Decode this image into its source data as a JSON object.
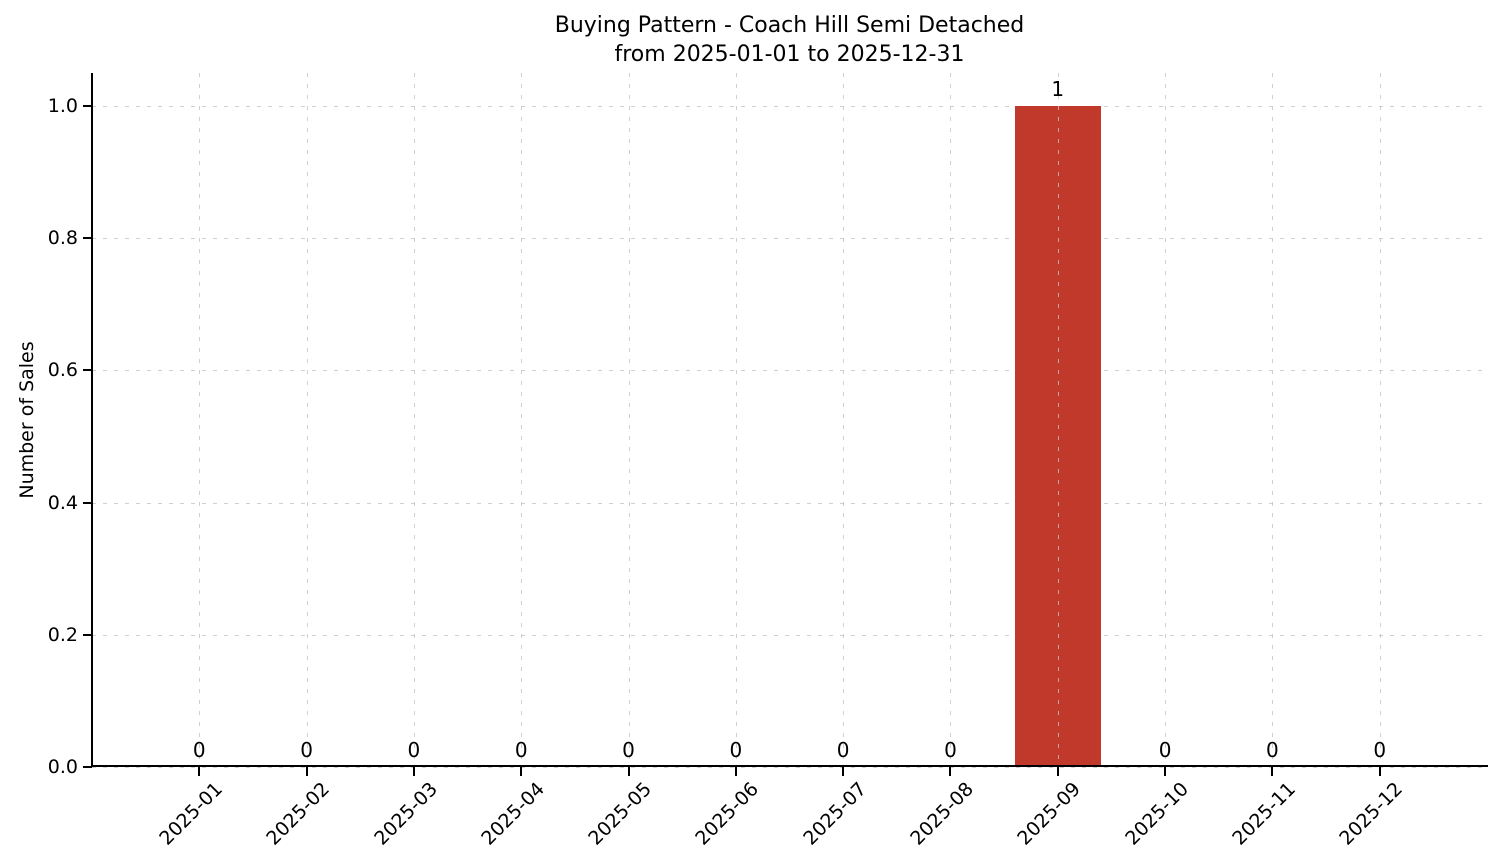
{
  "chart_data": {
    "type": "bar",
    "title": "Buying Pattern - Coach Hill Semi Detached",
    "subtitle": "from 2025-01-01 to 2025-12-31",
    "xlabel": "",
    "ylabel": "Number of Sales",
    "categories": [
      "2025-01",
      "2025-02",
      "2025-03",
      "2025-04",
      "2025-05",
      "2025-06",
      "2025-07",
      "2025-08",
      "2025-09",
      "2025-10",
      "2025-11",
      "2025-12"
    ],
    "values": [
      0,
      0,
      0,
      0,
      0,
      0,
      0,
      0,
      1,
      0,
      0,
      0
    ],
    "bar_labels": [
      "0",
      "0",
      "0",
      "0",
      "0",
      "0",
      "0",
      "0",
      "1",
      "0",
      "0",
      "0"
    ],
    "yticks": [
      0,
      0.2,
      0.4,
      0.6,
      0.8,
      1.0
    ],
    "ytick_labels": [
      "0.0",
      "0.2",
      "0.4",
      "0.6",
      "0.8",
      "1.0"
    ],
    "ylim": [
      0,
      1.05
    ],
    "xlim": [
      -1,
      12
    ],
    "bar_width_frac": 0.8,
    "xtick_rotation_deg": 45,
    "grid": true,
    "grid_style": "dashed",
    "legend": "none",
    "colors": {
      "bar": "#c0392b",
      "grid": "#cccccc",
      "axis": "#000000",
      "text": "#000000",
      "background": "#ffffff"
    }
  }
}
